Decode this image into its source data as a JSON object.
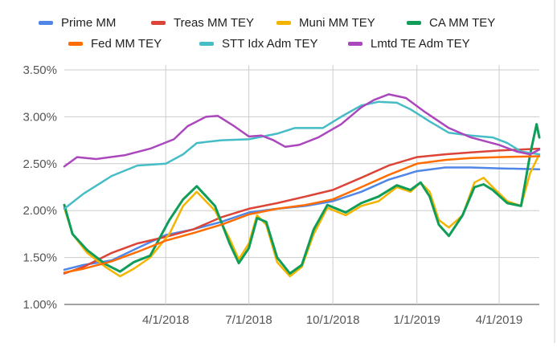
{
  "chart_data": {
    "type": "line",
    "legend_position": "top",
    "grid": true,
    "x_axis": {
      "type": "date",
      "range": [
        "2017-12-11",
        "2019-05-15"
      ],
      "ticks": [
        {
          "date": "2018-04-01",
          "label": "4/1/2018"
        },
        {
          "date": "2018-07-01",
          "label": "7/1/2018"
        },
        {
          "date": "2018-10-01",
          "label": "10/1/2018"
        },
        {
          "date": "2019-01-01",
          "label": "1/1/2019"
        },
        {
          "date": "2019-04-01",
          "label": "4/1/2019"
        }
      ]
    },
    "y_axis": {
      "range": [
        1.0,
        3.5
      ],
      "ticks": [
        {
          "value": 1.0,
          "label": "1.00%"
        },
        {
          "value": 1.5,
          "label": "1.50%"
        },
        {
          "value": 2.0,
          "label": "2.00%"
        },
        {
          "value": 2.5,
          "label": "2.50%"
        },
        {
          "value": 3.0,
          "label": "3.00%"
        },
        {
          "value": 3.5,
          "label": "3.50%"
        }
      ]
    },
    "series": [
      {
        "name": "Prime MM",
        "color": "#4f86e8",
        "points": [
          [
            "2017-12-11",
            1.37
          ],
          [
            "2018-01-01",
            1.42
          ],
          [
            "2018-02-01",
            1.47
          ],
          [
            "2018-03-01",
            1.6
          ],
          [
            "2018-04-01",
            1.74
          ],
          [
            "2018-05-01",
            1.8
          ],
          [
            "2018-06-01",
            1.88
          ],
          [
            "2018-07-01",
            1.98
          ],
          [
            "2018-08-01",
            2.02
          ],
          [
            "2018-09-01",
            2.05
          ],
          [
            "2018-10-01",
            2.1
          ],
          [
            "2018-11-01",
            2.2
          ],
          [
            "2018-12-01",
            2.33
          ],
          [
            "2019-01-01",
            2.42
          ],
          [
            "2019-02-01",
            2.46
          ],
          [
            "2019-03-01",
            2.46
          ],
          [
            "2019-04-01",
            2.45
          ],
          [
            "2019-05-15",
            2.44
          ]
        ]
      },
      {
        "name": "Treas MM TEY",
        "color": "#db4437",
        "points": [
          [
            "2017-12-11",
            1.33
          ],
          [
            "2018-01-01",
            1.4
          ],
          [
            "2018-02-01",
            1.55
          ],
          [
            "2018-03-01",
            1.65
          ],
          [
            "2018-04-01",
            1.72
          ],
          [
            "2018-05-01",
            1.8
          ],
          [
            "2018-06-01",
            1.93
          ],
          [
            "2018-07-01",
            2.02
          ],
          [
            "2018-08-01",
            2.08
          ],
          [
            "2018-09-01",
            2.15
          ],
          [
            "2018-10-01",
            2.22
          ],
          [
            "2018-11-01",
            2.35
          ],
          [
            "2018-12-01",
            2.48
          ],
          [
            "2019-01-01",
            2.57
          ],
          [
            "2019-02-01",
            2.6
          ],
          [
            "2019-03-01",
            2.62
          ],
          [
            "2019-04-01",
            2.64
          ],
          [
            "2019-05-15",
            2.66
          ]
        ]
      },
      {
        "name": "Muni MM TEY",
        "color": "#f4b400",
        "points": [
          [
            "2017-12-11",
            2.03
          ],
          [
            "2017-12-20",
            1.75
          ],
          [
            "2018-01-05",
            1.55
          ],
          [
            "2018-01-25",
            1.4
          ],
          [
            "2018-02-10",
            1.3
          ],
          [
            "2018-02-25",
            1.38
          ],
          [
            "2018-03-15",
            1.5
          ],
          [
            "2018-04-05",
            1.75
          ],
          [
            "2018-04-20",
            2.05
          ],
          [
            "2018-05-05",
            2.2
          ],
          [
            "2018-05-25",
            2.0
          ],
          [
            "2018-06-10",
            1.7
          ],
          [
            "2018-06-20",
            1.48
          ],
          [
            "2018-07-01",
            1.65
          ],
          [
            "2018-07-10",
            1.95
          ],
          [
            "2018-07-20",
            1.85
          ],
          [
            "2018-08-01",
            1.45
          ],
          [
            "2018-08-15",
            1.3
          ],
          [
            "2018-08-28",
            1.4
          ],
          [
            "2018-09-10",
            1.75
          ],
          [
            "2018-09-25",
            2.03
          ],
          [
            "2018-10-15",
            1.95
          ],
          [
            "2018-11-01",
            2.05
          ],
          [
            "2018-11-20",
            2.1
          ],
          [
            "2018-12-10",
            2.25
          ],
          [
            "2018-12-25",
            2.2
          ],
          [
            "2019-01-05",
            2.3
          ],
          [
            "2019-01-15",
            2.2
          ],
          [
            "2019-01-25",
            1.9
          ],
          [
            "2019-02-05",
            1.82
          ],
          [
            "2019-02-20",
            1.95
          ],
          [
            "2019-03-05",
            2.3
          ],
          [
            "2019-03-15",
            2.35
          ],
          [
            "2019-03-25",
            2.25
          ],
          [
            "2019-04-10",
            2.1
          ],
          [
            "2019-04-25",
            2.05
          ],
          [
            "2019-05-05",
            2.4
          ],
          [
            "2019-05-15",
            2.6
          ]
        ]
      },
      {
        "name": "CA MM TEY",
        "color": "#0f9d58",
        "points": [
          [
            "2017-12-11",
            2.06
          ],
          [
            "2017-12-20",
            1.75
          ],
          [
            "2018-01-05",
            1.58
          ],
          [
            "2018-01-25",
            1.43
          ],
          [
            "2018-02-10",
            1.35
          ],
          [
            "2018-02-25",
            1.45
          ],
          [
            "2018-03-15",
            1.52
          ],
          [
            "2018-04-05",
            1.9
          ],
          [
            "2018-04-20",
            2.12
          ],
          [
            "2018-05-05",
            2.26
          ],
          [
            "2018-05-25",
            2.05
          ],
          [
            "2018-06-10",
            1.65
          ],
          [
            "2018-06-20",
            1.44
          ],
          [
            "2018-07-01",
            1.6
          ],
          [
            "2018-07-10",
            1.92
          ],
          [
            "2018-07-20",
            1.88
          ],
          [
            "2018-08-01",
            1.5
          ],
          [
            "2018-08-15",
            1.33
          ],
          [
            "2018-08-28",
            1.42
          ],
          [
            "2018-09-10",
            1.8
          ],
          [
            "2018-09-25",
            2.06
          ],
          [
            "2018-10-15",
            1.98
          ],
          [
            "2018-11-01",
            2.08
          ],
          [
            "2018-11-20",
            2.15
          ],
          [
            "2018-12-10",
            2.27
          ],
          [
            "2018-12-25",
            2.22
          ],
          [
            "2019-01-05",
            2.3
          ],
          [
            "2019-01-15",
            2.15
          ],
          [
            "2019-01-25",
            1.85
          ],
          [
            "2019-02-05",
            1.73
          ],
          [
            "2019-02-20",
            1.95
          ],
          [
            "2019-03-05",
            2.25
          ],
          [
            "2019-03-15",
            2.28
          ],
          [
            "2019-03-25",
            2.22
          ],
          [
            "2019-04-10",
            2.08
          ],
          [
            "2019-04-25",
            2.05
          ],
          [
            "2019-05-05",
            2.6
          ],
          [
            "2019-05-12",
            2.92
          ],
          [
            "2019-05-15",
            2.78
          ]
        ]
      },
      {
        "name": "Fed MM TEY",
        "color": "#ff6d00",
        "points": [
          [
            "2017-12-11",
            1.34
          ],
          [
            "2018-01-01",
            1.38
          ],
          [
            "2018-02-01",
            1.46
          ],
          [
            "2018-03-01",
            1.56
          ],
          [
            "2018-04-01",
            1.68
          ],
          [
            "2018-05-01",
            1.76
          ],
          [
            "2018-06-01",
            1.85
          ],
          [
            "2018-07-01",
            1.96
          ],
          [
            "2018-08-01",
            2.02
          ],
          [
            "2018-09-01",
            2.06
          ],
          [
            "2018-10-01",
            2.12
          ],
          [
            "2018-11-01",
            2.25
          ],
          [
            "2018-12-01",
            2.38
          ],
          [
            "2019-01-01",
            2.5
          ],
          [
            "2019-02-01",
            2.54
          ],
          [
            "2019-03-01",
            2.56
          ],
          [
            "2019-04-01",
            2.57
          ],
          [
            "2019-05-15",
            2.58
          ]
        ]
      },
      {
        "name": "STT Idx Adm TEY",
        "color": "#46bdc6",
        "points": [
          [
            "2017-12-11",
            2.02
          ],
          [
            "2018-01-01",
            2.18
          ],
          [
            "2018-02-01",
            2.37
          ],
          [
            "2018-03-01",
            2.48
          ],
          [
            "2018-04-01",
            2.5
          ],
          [
            "2018-04-20",
            2.6
          ],
          [
            "2018-05-05",
            2.72
          ],
          [
            "2018-06-01",
            2.75
          ],
          [
            "2018-07-01",
            2.76
          ],
          [
            "2018-08-01",
            2.82
          ],
          [
            "2018-08-20",
            2.88
          ],
          [
            "2018-09-20",
            2.88
          ],
          [
            "2018-10-10",
            3.0
          ],
          [
            "2018-11-01",
            3.12
          ],
          [
            "2018-11-20",
            3.16
          ],
          [
            "2018-12-10",
            3.15
          ],
          [
            "2018-12-25",
            3.08
          ],
          [
            "2019-01-15",
            2.95
          ],
          [
            "2019-02-05",
            2.83
          ],
          [
            "2019-03-01",
            2.8
          ],
          [
            "2019-03-25",
            2.78
          ],
          [
            "2019-04-10",
            2.72
          ],
          [
            "2019-04-25",
            2.63
          ],
          [
            "2019-05-15",
            2.6
          ]
        ]
      },
      {
        "name": "Lmtd TE Adm TEY",
        "color": "#ab47bc",
        "points": [
          [
            "2017-12-11",
            2.47
          ],
          [
            "2017-12-25",
            2.57
          ],
          [
            "2018-01-15",
            2.55
          ],
          [
            "2018-02-15",
            2.59
          ],
          [
            "2018-03-15",
            2.66
          ],
          [
            "2018-04-10",
            2.76
          ],
          [
            "2018-04-25",
            2.9
          ],
          [
            "2018-05-15",
            3.0
          ],
          [
            "2018-05-28",
            3.01
          ],
          [
            "2018-06-15",
            2.9
          ],
          [
            "2018-07-01",
            2.79
          ],
          [
            "2018-07-15",
            2.8
          ],
          [
            "2018-07-28",
            2.75
          ],
          [
            "2018-08-10",
            2.68
          ],
          [
            "2018-08-25",
            2.7
          ],
          [
            "2018-09-15",
            2.78
          ],
          [
            "2018-10-10",
            2.92
          ],
          [
            "2018-11-01",
            3.1
          ],
          [
            "2018-11-15",
            3.18
          ],
          [
            "2018-12-01",
            3.24
          ],
          [
            "2018-12-20",
            3.2
          ],
          [
            "2019-01-10",
            3.05
          ],
          [
            "2019-02-05",
            2.88
          ],
          [
            "2019-03-01",
            2.78
          ],
          [
            "2019-04-01",
            2.7
          ],
          [
            "2019-04-20",
            2.63
          ],
          [
            "2019-05-05",
            2.6
          ],
          [
            "2019-05-15",
            2.65
          ]
        ]
      }
    ]
  }
}
